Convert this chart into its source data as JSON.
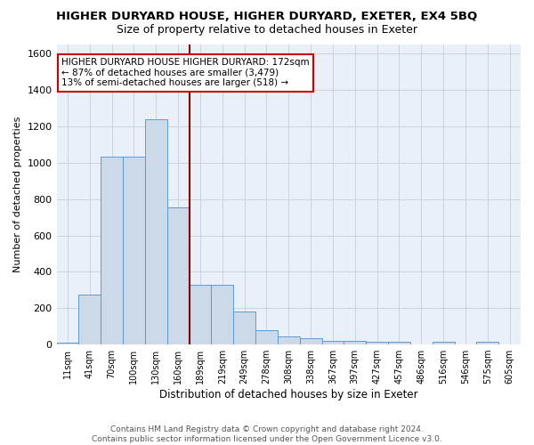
{
  "title": "HIGHER DURYARD HOUSE, HIGHER DURYARD, EXETER, EX4 5BQ",
  "subtitle": "Size of property relative to detached houses in Exeter",
  "xlabel": "Distribution of detached houses by size in Exeter",
  "ylabel": "Number of detached properties",
  "categories": [
    "11sqm",
    "41sqm",
    "70sqm",
    "100sqm",
    "130sqm",
    "160sqm",
    "189sqm",
    "219sqm",
    "249sqm",
    "278sqm",
    "308sqm",
    "338sqm",
    "367sqm",
    "397sqm",
    "427sqm",
    "457sqm",
    "486sqm",
    "516sqm",
    "546sqm",
    "575sqm",
    "605sqm"
  ],
  "values": [
    10,
    275,
    1035,
    1035,
    1240,
    755,
    330,
    330,
    180,
    78,
    45,
    35,
    22,
    20,
    15,
    15,
    0,
    15,
    0,
    15,
    0
  ],
  "bar_color": "#ccd9e8",
  "bar_edge_color": "#5b9bd5",
  "background_color": "#eaf0f8",
  "ylim": [
    0,
    1650
  ],
  "yticks": [
    0,
    200,
    400,
    600,
    800,
    1000,
    1200,
    1400,
    1600
  ],
  "annotation_text": "HIGHER DURYARD HOUSE HIGHER DURYARD: 172sqm\n← 87% of detached houses are smaller (3,479)\n13% of semi-detached houses are larger (518) →",
  "annotation_box_color": "#ffffff",
  "annotation_box_edge": "#cc0000",
  "footer_text": "Contains HM Land Registry data © Crown copyright and database right 2024.\nContains public sector information licensed under the Open Government Licence v3.0.",
  "marker_color": "#800000",
  "grid_color": "#c8d4e0",
  "title_fontsize": 9.5,
  "subtitle_fontsize": 9,
  "bar_linewidth": 0.7
}
